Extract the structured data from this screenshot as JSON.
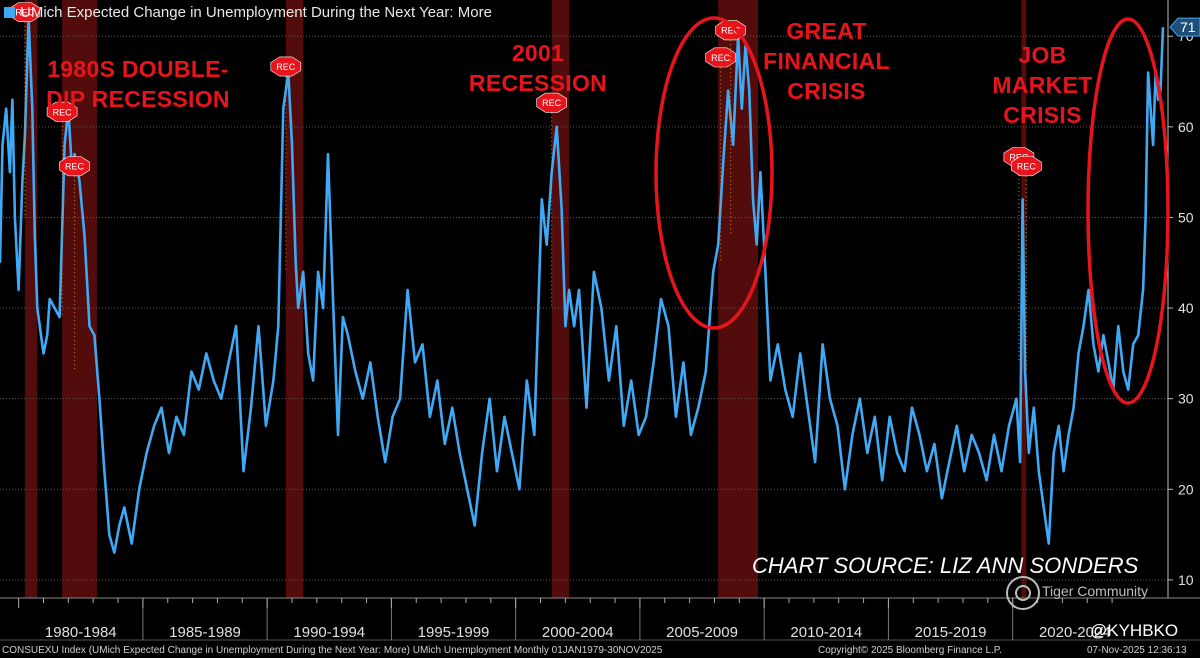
{
  "legend": {
    "label": "UMich Expected Change in Unemployment During the Next Year: More",
    "color": "#3fa9f5"
  },
  "annotations": {
    "double_dip": [
      "1980S DOUBLE-",
      "DIP RECESSION"
    ],
    "r2001": [
      "2001",
      "RECESSION"
    ],
    "gfc": [
      "GREAT",
      "FINANCIAL",
      "CRISIS"
    ],
    "job": [
      "JOB",
      "MARKET",
      "CRISIS"
    ]
  },
  "source_text": "CHART SOURCE: LIZ ANN SONDERS",
  "footer": {
    "left": "CONSUEXU Index (UMich Expected Change in Unemployment During the Next Year: More) UMich Unemployment Monthly 01JAN1979-30NOV2025",
    "copyright": "Copyright© 2025 Bloomberg Finance L.P.",
    "timestamp": "07-Nov-2025 12:36:13"
  },
  "watermark": "Tiger Community",
  "handle": "@KYHBKO",
  "chart_data": {
    "type": "line",
    "title": "UMich Expected Change in Unemployment During the Next Year: More",
    "ylim": [
      8,
      74
    ],
    "xlim": [
      1979.0,
      2026.0
    ],
    "y_ticks": [
      10,
      20,
      30,
      40,
      50,
      60,
      70
    ],
    "last_value": 71,
    "x_axis_labels": [
      "1980-1984",
      "1985-1989",
      "1990-1994",
      "1995-1999",
      "2000-2004",
      "2005-2009",
      "2010-2014",
      "2015-2019",
      "2020-2024"
    ],
    "recessions": [
      [
        1980.0,
        1980.5
      ],
      [
        1981.5,
        1982.9
      ],
      [
        1990.5,
        1991.2
      ],
      [
        2001.2,
        2001.9
      ],
      [
        2007.9,
        2009.5
      ],
      [
        2020.1,
        2020.3
      ]
    ],
    "rec_label": "REC",
    "highlight_color": "#e8141c",
    "series": [
      {
        "color": "#3fa9f5",
        "x": [
          1979.0,
          1979.1,
          1979.25,
          1979.4,
          1979.5,
          1979.6,
          1979.75,
          1979.9,
          1980.0,
          1980.15,
          1980.3,
          1980.4,
          1980.5,
          1980.6,
          1980.75,
          1980.9,
          1981.0,
          1981.2,
          1981.4,
          1981.6,
          1981.75,
          1981.9,
          1982.0,
          1982.2,
          1982.4,
          1982.6,
          1982.8,
          1983.0,
          1983.2,
          1983.4,
          1983.6,
          1983.8,
          1984.0,
          1984.3,
          1984.6,
          1984.9,
          1985.2,
          1985.5,
          1985.8,
          1986.1,
          1986.4,
          1986.7,
          1987.0,
          1987.3,
          1987.6,
          1987.9,
          1988.2,
          1988.5,
          1988.8,
          1989.1,
          1989.4,
          1989.7,
          1990.0,
          1990.2,
          1990.4,
          1990.6,
          1990.75,
          1990.9,
          1991.0,
          1991.2,
          1991.4,
          1991.6,
          1991.8,
          1992.0,
          1992.2,
          1992.4,
          1992.6,
          1992.8,
          1993.0,
          1993.3,
          1993.6,
          1993.9,
          1994.2,
          1994.5,
          1994.8,
          1995.1,
          1995.4,
          1995.7,
          1996.0,
          1996.3,
          1996.6,
          1996.9,
          1997.2,
          1997.5,
          1997.8,
          1998.1,
          1998.4,
          1998.7,
          1999.0,
          1999.3,
          1999.6,
          1999.9,
          2000.2,
          2000.5,
          2000.8,
          2001.0,
          2001.2,
          2001.4,
          2001.6,
          2001.75,
          2001.9,
          2002.1,
          2002.3,
          2002.6,
          2002.9,
          2003.2,
          2003.5,
          2003.8,
          2004.1,
          2004.4,
          2004.7,
          2005.0,
          2005.3,
          2005.6,
          2005.9,
          2006.2,
          2006.5,
          2006.8,
          2007.1,
          2007.4,
          2007.7,
          2007.9,
          2008.1,
          2008.3,
          2008.5,
          2008.7,
          2008.85,
          2009.0,
          2009.15,
          2009.3,
          2009.45,
          2009.6,
          2009.8,
          2010.0,
          2010.3,
          2010.6,
          2010.9,
          2011.2,
          2011.5,
          2011.8,
          2012.1,
          2012.4,
          2012.7,
          2013.0,
          2013.3,
          2013.6,
          2013.9,
          2014.2,
          2014.5,
          2014.8,
          2015.1,
          2015.4,
          2015.7,
          2016.0,
          2016.3,
          2016.6,
          2016.9,
          2017.2,
          2017.5,
          2017.8,
          2018.1,
          2018.4,
          2018.7,
          2019.0,
          2019.3,
          2019.6,
          2019.9,
          2020.05,
          2020.15,
          2020.25,
          2020.4,
          2020.6,
          2020.8,
          2021.0,
          2021.2,
          2021.4,
          2021.6,
          2021.8,
          2022.0,
          2022.2,
          2022.4,
          2022.6,
          2022.8,
          2023.0,
          2023.2,
          2023.4,
          2023.6,
          2023.8,
          2024.0,
          2024.2,
          2024.4,
          2024.6,
          2024.8,
          2025.0,
          2025.1,
          2025.2,
          2025.3,
          2025.4,
          2025.5,
          2025.6,
          2025.7,
          2025.8
        ],
        "y": [
          45,
          58,
          62,
          55,
          63,
          50,
          42,
          54,
          59,
          72,
          62,
          48,
          40,
          38,
          35,
          37,
          41,
          40,
          39,
          58,
          62,
          55,
          57,
          54,
          48,
          38,
          37,
          30,
          22,
          15,
          13,
          16,
          18,
          14,
          20,
          24,
          27,
          29,
          24,
          28,
          26,
          33,
          31,
          35,
          32,
          30,
          34,
          38,
          22,
          29,
          38,
          27,
          32,
          38,
          62,
          66,
          58,
          45,
          40,
          44,
          35,
          32,
          44,
          40,
          57,
          41,
          26,
          39,
          37,
          33,
          30,
          34,
          28,
          23,
          28,
          30,
          42,
          34,
          36,
          28,
          32,
          25,
          29,
          24,
          20,
          16,
          24,
          30,
          22,
          28,
          24,
          20,
          32,
          26,
          52,
          47,
          55,
          60,
          51,
          38,
          42,
          38,
          42,
          29,
          44,
          40,
          32,
          38,
          27,
          32,
          26,
          28,
          34,
          41,
          38,
          28,
          34,
          26,
          29,
          33,
          44,
          47,
          56,
          64,
          58,
          70,
          62,
          69,
          64,
          52,
          47,
          55,
          44,
          32,
          36,
          31,
          28,
          35,
          29,
          23,
          36,
          30,
          27,
          20,
          26,
          30,
          24,
          28,
          21,
          28,
          24,
          22,
          29,
          26,
          22,
          25,
          19,
          23,
          27,
          22,
          26,
          24,
          21,
          26,
          22,
          27,
          30,
          23,
          52,
          33,
          24,
          29,
          22,
          18,
          14,
          24,
          27,
          22,
          26,
          29,
          35,
          38,
          42,
          36,
          33,
          37,
          34,
          31,
          38,
          33,
          31,
          36,
          37,
          42,
          50,
          66,
          62,
          58,
          66,
          63,
          64,
          71
        ]
      }
    ]
  }
}
